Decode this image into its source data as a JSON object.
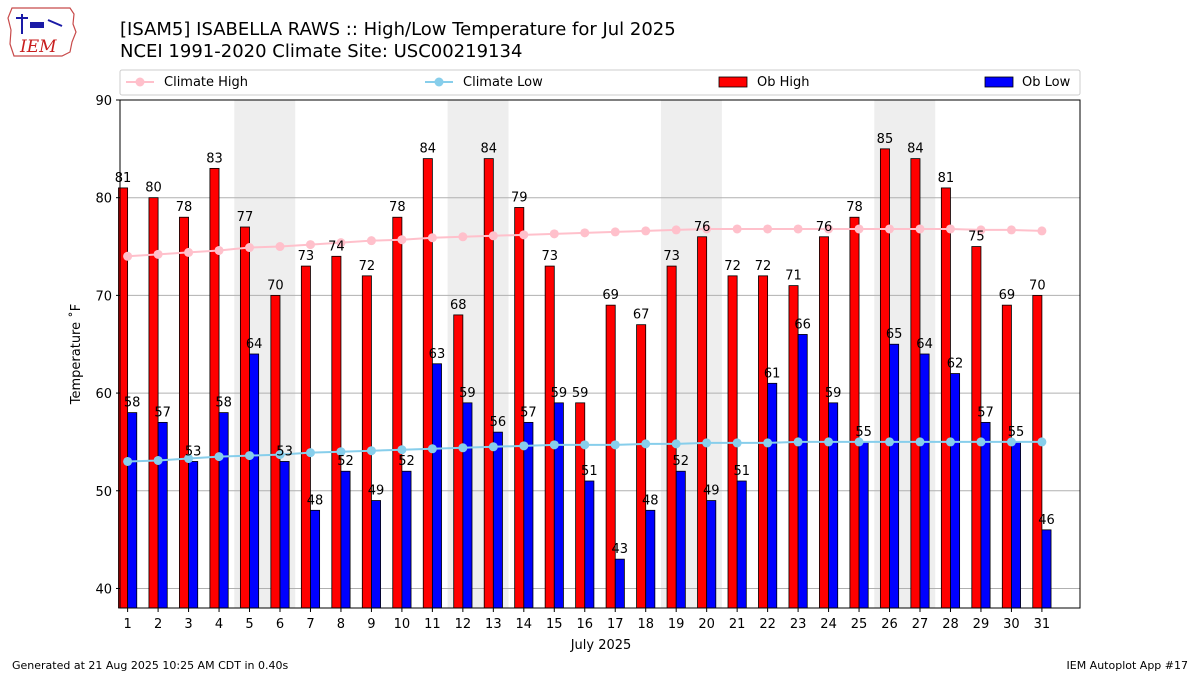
{
  "header": {
    "logo_text": "IEM",
    "title_line1": "[ISAM5] ISABELLA RAWS :: High/Low Temperature for Jul 2025",
    "title_line2": "NCEI 1991-2020 Climate Site: USC00219134"
  },
  "footer": {
    "left": "Generated at 21 Aug 2025 10:25 AM CDT in 0.40s",
    "right": "IEM Autoplot App #17"
  },
  "colors": {
    "ob_high": "#ff0000",
    "ob_low": "#0000ff",
    "climate_high": "#ffc0cb",
    "climate_low": "#87ceeb",
    "weekend_shade": "#eeeeee",
    "grid": "#b0b0b0"
  },
  "chart_data": {
    "type": "bar",
    "xlabel": "July 2025",
    "ylabel": "Temperature ˚F",
    "ylim": [
      38,
      90
    ],
    "yticks": [
      40,
      50,
      60,
      70,
      80,
      90
    ],
    "grid": "horizontal",
    "legend_position": "top",
    "categories": [
      "1",
      "2",
      "3",
      "4",
      "5",
      "6",
      "7",
      "8",
      "9",
      "10",
      "11",
      "12",
      "13",
      "14",
      "15",
      "16",
      "17",
      "18",
      "19",
      "20",
      "21",
      "22",
      "23",
      "24",
      "25",
      "26",
      "27",
      "28",
      "29",
      "30",
      "31"
    ],
    "shaded_weekends": [
      [
        5,
        6
      ],
      [
        12,
        13
      ],
      [
        19,
        20
      ],
      [
        26,
        27
      ]
    ],
    "series": [
      {
        "name": "Ob High",
        "kind": "bar",
        "color": "#ff0000",
        "values": [
          81,
          80,
          78,
          83,
          77,
          70,
          73,
          74,
          72,
          78,
          84,
          68,
          84,
          79,
          73,
          59,
          69,
          67,
          73,
          76,
          72,
          72,
          71,
          76,
          78,
          85,
          84,
          81,
          75,
          69,
          70
        ]
      },
      {
        "name": "Ob Low",
        "kind": "bar",
        "color": "#0000ff",
        "values": [
          58,
          57,
          53,
          58,
          64,
          53,
          48,
          52,
          49,
          52,
          63,
          59,
          56,
          57,
          59,
          51,
          43,
          48,
          52,
          49,
          51,
          61,
          66,
          59,
          55,
          65,
          64,
          62,
          57,
          55,
          46
        ]
      },
      {
        "name": "Climate High",
        "kind": "line",
        "color": "#ffc0cb",
        "values": [
          74.0,
          74.2,
          74.4,
          74.6,
          74.9,
          75.0,
          75.2,
          75.4,
          75.6,
          75.7,
          75.9,
          76.0,
          76.1,
          76.2,
          76.3,
          76.4,
          76.5,
          76.6,
          76.7,
          76.8,
          76.8,
          76.8,
          76.8,
          76.8,
          76.8,
          76.8,
          76.8,
          76.8,
          76.7,
          76.7,
          76.6
        ]
      },
      {
        "name": "Climate Low",
        "kind": "line",
        "color": "#87ceeb",
        "values": [
          53.0,
          53.1,
          53.3,
          53.5,
          53.6,
          53.7,
          53.9,
          54.0,
          54.1,
          54.2,
          54.3,
          54.4,
          54.5,
          54.6,
          54.7,
          54.7,
          54.7,
          54.8,
          54.8,
          54.9,
          54.9,
          54.9,
          55.0,
          55.0,
          55.0,
          55.0,
          55.0,
          55.0,
          55.0,
          55.0,
          55.0
        ]
      }
    ]
  }
}
